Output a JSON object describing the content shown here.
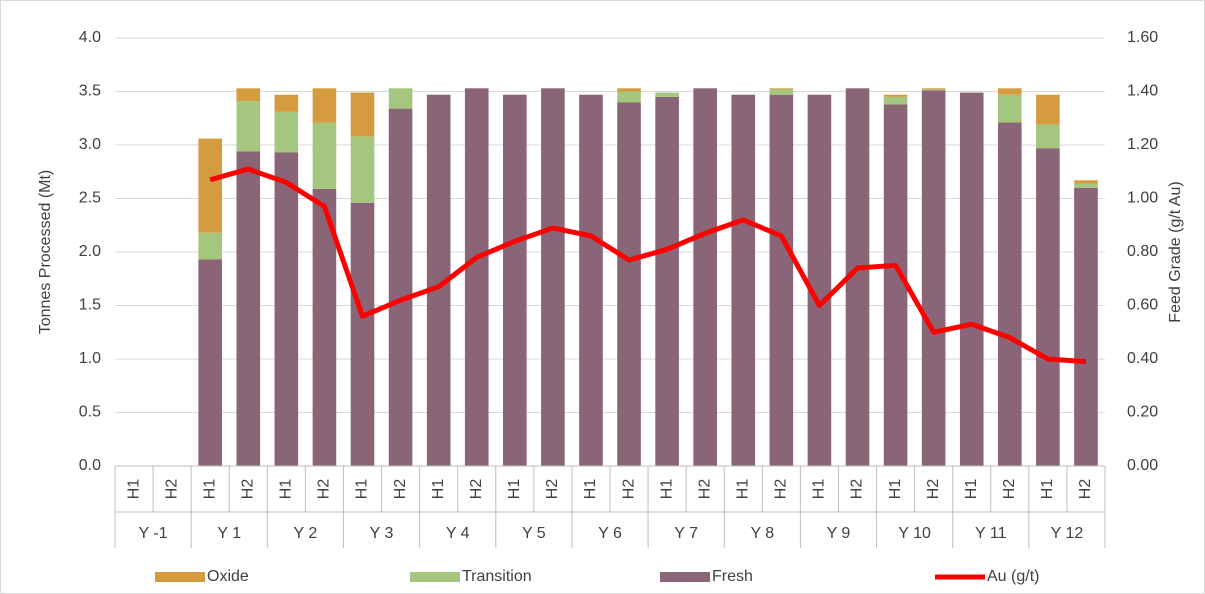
{
  "chart_data": {
    "type": "stacked-bar-line",
    "y_label": "Tonnes Processed (Mt)",
    "y2_label": "Feed Grade (g/t Au)",
    "categories": [
      "H1",
      "H2",
      "H1",
      "H2",
      "H1",
      "H2",
      "H1",
      "H2",
      "H1",
      "H2",
      "H1",
      "H2",
      "H1",
      "H2",
      "H1",
      "H2",
      "H1",
      "H2",
      "H1",
      "H2",
      "H1",
      "H2",
      "H1",
      "H2",
      "H1",
      "H2"
    ],
    "groups": [
      "Y -1",
      "Y 1",
      "Y 2",
      "Y 3",
      "Y 4",
      "Y 5",
      "Y 6",
      "Y 7",
      "Y 8",
      "Y 9",
      "Y 10",
      "Y 11",
      "Y 12"
    ],
    "series": [
      {
        "name": "Fresh",
        "color": "#8a6477",
        "values": [
          null,
          null,
          1.93,
          2.94,
          2.93,
          2.59,
          2.46,
          3.34,
          3.47,
          3.53,
          3.47,
          3.53,
          3.47,
          3.4,
          3.45,
          3.53,
          3.47,
          3.47,
          3.47,
          3.53,
          3.38,
          3.51,
          3.49,
          3.21,
          2.97,
          2.6
        ]
      },
      {
        "name": "Transition",
        "color": "#a5c67e",
        "values": [
          null,
          null,
          0.25,
          0.47,
          0.38,
          0.62,
          0.62,
          0.19,
          0,
          0,
          0,
          0,
          0,
          0.1,
          0.04,
          0,
          0,
          0.05,
          0,
          0,
          0.07,
          0.01,
          0,
          0.26,
          0.22,
          0.04
        ]
      },
      {
        "name": "Oxide",
        "color": "#d59b3f",
        "values": [
          null,
          null,
          0.88,
          0.12,
          0.16,
          0.32,
          0.41,
          0,
          0,
          0,
          0,
          0,
          0,
          0.03,
          0,
          0,
          0,
          0.01,
          0,
          0,
          0.02,
          0.01,
          0,
          0.06,
          0.28,
          0.03
        ]
      },
      {
        "name": "Au (g/t)",
        "color": "#ff0000",
        "axis": "y2",
        "values": [
          null,
          null,
          1.07,
          1.11,
          1.06,
          0.97,
          0.56,
          0.62,
          0.67,
          0.78,
          0.84,
          0.89,
          0.86,
          0.77,
          0.81,
          0.87,
          0.92,
          0.86,
          0.6,
          0.74,
          0.75,
          0.5,
          0.53,
          0.48,
          0.4,
          0.39
        ]
      }
    ],
    "legend_order": [
      2,
      1,
      0,
      3
    ],
    "ylim": [
      0,
      4
    ],
    "yticks": [
      {
        "value": 0,
        "label": "0.0"
      },
      0.5,
      {
        "value": 1,
        "label": "1.0"
      },
      1.5,
      {
        "value": 2,
        "label": "2.0"
      },
      2.5,
      {
        "value": 3,
        "label": "3.0"
      },
      3.5,
      {
        "value": 4,
        "label": "4.0"
      }
    ],
    "y2lim": [
      0,
      1.6
    ],
    "y2ticks": [
      {
        "value": 0,
        "label": "0.00"
      },
      {
        "value": 0.2,
        "label": "0.20"
      },
      {
        "value": 0.4,
        "label": "0.40"
      },
      {
        "value": 0.6,
        "label": "0.60"
      },
      {
        "value": 0.8,
        "label": "0.80"
      },
      {
        "value": 1,
        "label": "1.00"
      },
      {
        "value": 1.2,
        "label": "1.20"
      },
      {
        "value": 1.4,
        "label": "1.40"
      },
      {
        "value": 1.6,
        "label": "1.60"
      }
    ],
    "grid": true,
    "legend": "bottom"
  }
}
